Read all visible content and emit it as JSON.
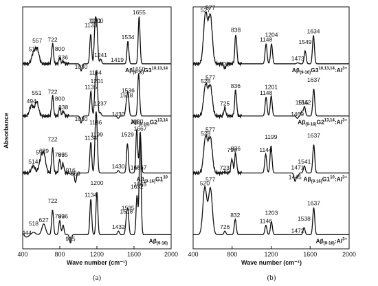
{
  "chart_data": [
    {
      "panel_label": "(a)",
      "type": "line",
      "ylabel": "Absorbance",
      "xlabel": "Wave number (cm⁻¹)",
      "xlim": [
        400,
        2000
      ],
      "xticks": [
        "400",
        "800",
        "1200",
        "1600",
        "2000"
      ],
      "ylim": [
        0,
        10.2
      ],
      "series": [
        {
          "name": "Aβ(9-16)G3 10,13,14",
          "label_base": "Aβ",
          "label_sub": "(9-16)",
          "label_mid": "G",
          "label_num": "3",
          "label_sup": "10,13,14",
          "offset": 7.8,
          "peaks": [
            {
              "x": 517,
              "y": 0.45,
              "label": "517"
            },
            {
              "x": 557,
              "y": 0.6,
              "label": "557"
            },
            {
              "x": 722,
              "y": 0.85,
              "label": "722"
            },
            {
              "x": 800,
              "y": 0.25,
              "label": "800"
            },
            {
              "x": 836,
              "y": 0.1,
              "label": "836"
            },
            {
              "x": 1030,
              "y": -0.3,
              "label": "1030"
            },
            {
              "x": 1133,
              "y": 1.25,
              "label": "1133"
            },
            {
              "x": 1181,
              "y": 1.65,
              "label": "1181"
            },
            {
              "x": 1200,
              "y": 1.45,
              "label": "1200"
            },
            {
              "x": 1241,
              "y": 0.2,
              "label": "1241"
            },
            {
              "x": 1419,
              "y": 0.0,
              "label": "1419"
            },
            {
              "x": 1534,
              "y": 0.95,
              "label": "1534"
            },
            {
              "x": 1655,
              "y": 2.0,
              "label": "1655"
            }
          ]
        },
        {
          "name": "Aβ(9-16)G2 13,14",
          "label_base": "Aβ",
          "label_sub": "(9-16)",
          "label_mid": "G",
          "label_num": "2",
          "label_sup": "13,14",
          "offset": 5.6,
          "peaks": [
            {
              "x": 494,
              "y": 0.45,
              "label": "494"
            },
            {
              "x": 551,
              "y": 0.6,
              "label": "551"
            },
            {
              "x": 722,
              "y": 0.85,
              "label": "722"
            },
            {
              "x": 800,
              "y": 0.35,
              "label": "800"
            },
            {
              "x": 838,
              "y": 0.2,
              "label": "838"
            },
            {
              "x": 1030,
              "y": -0.3,
              "label": "1030"
            },
            {
              "x": 1135,
              "y": 1.05,
              "label": "1135"
            },
            {
              "x": 1184,
              "y": 1.45,
              "label": "1184"
            },
            {
              "x": 1201,
              "y": 1.3,
              "label": "1201"
            },
            {
              "x": 1237,
              "y": 0.15,
              "label": "1237"
            },
            {
              "x": 1430,
              "y": -0.1,
              "label": "1430"
            },
            {
              "x": 1518,
              "y": 0.5,
              "label": "1518"
            },
            {
              "x": 1536,
              "y": 0.9,
              "label": "1536"
            },
            {
              "x": 1650,
              "y": 1.8,
              "label": "1650"
            }
          ]
        },
        {
          "name": "Aβ(9-16)G1 10",
          "label_base": "Aβ",
          "label_sub": "(9-16)",
          "label_mid": "G",
          "label_num": "1",
          "label_sup": "10",
          "offset": 3.2,
          "peaks": [
            {
              "x": 514,
              "y": 0.3,
              "label": "514"
            },
            {
              "x": 594,
              "y": 0.5,
              "label": "594"
            },
            {
              "x": 629,
              "y": 0.75,
              "label": "629"
            },
            {
              "x": 722,
              "y": 1.05,
              "label": "722"
            },
            {
              "x": 799,
              "y": 0.6,
              "label": "799"
            },
            {
              "x": 835,
              "y": 0.4,
              "label": "835"
            },
            {
              "x": 916,
              "y": -0.05,
              "label": "916"
            },
            {
              "x": 969,
              "y": -0.4,
              "label": "969"
            },
            {
              "x": 1134,
              "y": 1.3,
              "label": "1134"
            },
            {
              "x": 1186,
              "y": 1.75,
              "label": "1186"
            },
            {
              "x": 1199,
              "y": 1.45,
              "label": "1199"
            },
            {
              "x": 1430,
              "y": 0.1,
              "label": "1430"
            },
            {
              "x": 1529,
              "y": 1.25,
              "label": "1529"
            },
            {
              "x": 1630,
              "y": 2.0,
              "label": "1630"
            },
            {
              "x": 1631,
              "y": -0.15,
              "label": "1631"
            },
            {
              "x": 1667,
              "y": 1.7,
              "label": "1667"
            }
          ]
        },
        {
          "name": "Aβ(9-16)",
          "label_base": "Aβ",
          "label_sub": "(9-16)",
          "label_mid": "",
          "label_num": "",
          "label_sup": "",
          "offset": 0.6,
          "peaks": [
            {
              "x": 444,
              "y": -0.1,
              "label": "444"
            },
            {
              "x": 518,
              "y": 0.1,
              "label": "518"
            },
            {
              "x": 627,
              "y": 0.45,
              "label": "627"
            },
            {
              "x": 722,
              "y": 1.05,
              "label": "722"
            },
            {
              "x": 799,
              "y": 0.6,
              "label": "799"
            },
            {
              "x": 836,
              "y": 0.4,
              "label": "836"
            },
            {
              "x": 915,
              "y": -0.35,
              "label": "915"
            },
            {
              "x": 1134,
              "y": 1.5,
              "label": "1134"
            },
            {
              "x": 1200,
              "y": 1.8,
              "label": "1200"
            },
            {
              "x": 1432,
              "y": 0.15,
              "label": "1432"
            },
            {
              "x": 1518,
              "y": 0.6,
              "label": "1518"
            },
            {
              "x": 1535,
              "y": 0.95,
              "label": "1535"
            },
            {
              "x": 1632,
              "y": 1.65,
              "label": "1632"
            },
            {
              "x": 1665,
              "y": 1.95,
              "label": "1665"
            },
            {
              "x": 1667,
              "y": 2.45,
              "label": "1667"
            }
          ]
        }
      ]
    },
    {
      "panel_label": "(b)",
      "type": "line",
      "xlabel": "Wave number (cm⁻¹)",
      "xlim": [
        400,
        2000
      ],
      "xticks": [
        "400",
        "800",
        "1200",
        "1600",
        "2000"
      ],
      "ylim": [
        0,
        10.2
      ],
      "series": [
        {
          "name": "Aβ(9-16)G3 10,13,14:Al3+",
          "label_base": "Aβ",
          "label_sub": "(9-16)",
          "label_mid": "G",
          "label_num": "3",
          "label_sup": "10,13,14",
          "label_tail": ":Al",
          "label_ion": "3+",
          "offset": 7.8,
          "peaks": [
            {
              "x": 527,
              "y": 2.1,
              "label": "527"
            },
            {
              "x": 577,
              "y": 2.0,
              "label": "577"
            },
            {
              "x": 725,
              "y": -0.2,
              "label": "725"
            },
            {
              "x": 838,
              "y": 1.25,
              "label": "838"
            },
            {
              "x": 1148,
              "y": 0.85,
              "label": "1148"
            },
            {
              "x": 1204,
              "y": 0.85,
              "label": "1204"
            },
            {
              "x": 1473,
              "y": 0.05,
              "label": "1473"
            },
            {
              "x": 1549,
              "y": 0.55,
              "label": "1549"
            },
            {
              "x": 1634,
              "y": 1.2,
              "label": "1634"
            }
          ]
        },
        {
          "name": "Aβ(9-16)G2 13,14:Al3+",
          "label_base": "Aβ",
          "label_sub": "(9-16)",
          "label_mid": "G",
          "label_num": "2",
          "label_sup": "13,14",
          "label_tail": ":Al",
          "label_ion": "3+",
          "offset": 5.6,
          "peaks": [
            {
              "x": 528,
              "y": 1.3,
              "label": "528"
            },
            {
              "x": 577,
              "y": 1.25,
              "label": "577"
            },
            {
              "x": 725,
              "y": 0.35,
              "label": "725"
            },
            {
              "x": 836,
              "y": 1.1,
              "label": "836"
            },
            {
              "x": 1148,
              "y": 0.8,
              "label": "1148"
            },
            {
              "x": 1201,
              "y": 0.85,
              "label": "1201"
            },
            {
              "x": 1469,
              "y": -0.1,
              "label": "1469"
            },
            {
              "x": 1515,
              "y": 0.2,
              "label": "1515"
            },
            {
              "x": 1542,
              "y": 0.4,
              "label": "1542"
            },
            {
              "x": 1637,
              "y": 1.15,
              "label": "1637"
            }
          ]
        },
        {
          "name": "Aβ(9-16)G1 10:Al3+",
          "label_base": "Aβ",
          "label_sub": "(9-16)",
          "label_mid": "G",
          "label_num": "1",
          "label_sup": "10",
          "label_tail": ":Al",
          "label_ion": "3+",
          "offset": 3.2,
          "peaks": [
            {
              "x": 528,
              "y": 1.5,
              "label": "528"
            },
            {
              "x": 577,
              "y": 1.45,
              "label": "577"
            },
            {
              "x": 723,
              "y": 0.05,
              "label": "723"
            },
            {
              "x": 798,
              "y": 0.6,
              "label": "798"
            },
            {
              "x": 836,
              "y": 0.85,
              "label": "836"
            },
            {
              "x": 1144,
              "y": 0.8,
              "label": "1144"
            },
            {
              "x": 1199,
              "y": 1.15,
              "label": "1199"
            },
            {
              "x": 1445,
              "y": -0.35,
              "label": "1445"
            },
            {
              "x": 1471,
              "y": -0.15,
              "label": "1471"
            },
            {
              "x": 1541,
              "y": 0.3,
              "label": "1541"
            },
            {
              "x": 1637,
              "y": 1.2,
              "label": "1637"
            }
          ]
        },
        {
          "name": "Aβ(9-16):Al3+",
          "label_base": "Aβ",
          "label_sub": "(9-16)",
          "label_mid": "",
          "label_num": "",
          "label_sup": "",
          "label_tail": ":Al",
          "label_ion": "3+",
          "offset": 0.6,
          "peaks": [
            {
              "x": 520,
              "y": 2.0,
              "label": "520"
            },
            {
              "x": 577,
              "y": 1.95,
              "label": "577"
            },
            {
              "x": 726,
              "y": 0.15,
              "label": "726"
            },
            {
              "x": 832,
              "y": 0.65,
              "label": "832"
            },
            {
              "x": 1146,
              "y": 0.4,
              "label": "1146"
            },
            {
              "x": 1203,
              "y": 0.55,
              "label": "1203"
            },
            {
              "x": 1472,
              "y": 0.0,
              "label": "1472"
            },
            {
              "x": 1538,
              "y": 0.3,
              "label": "1538"
            },
            {
              "x": 1637,
              "y": 1.15,
              "label": "1637"
            }
          ]
        }
      ]
    }
  ]
}
